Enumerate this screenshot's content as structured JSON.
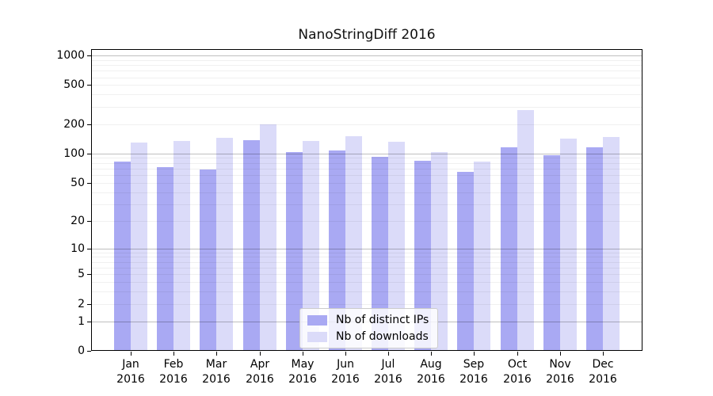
{
  "title": "NanoStringDiff 2016",
  "chart_data": {
    "type": "bar",
    "title": "NanoStringDiff 2016",
    "categories": [
      "Jan",
      "Feb",
      "Mar",
      "Apr",
      "May",
      "Jun",
      "Jul",
      "Aug",
      "Sep",
      "Oct",
      "Nov",
      "Dec"
    ],
    "category_year": "2016",
    "series": [
      {
        "name": "Nb of distinct IPs",
        "color": "#a9a9f3",
        "values": [
          82,
          72,
          68,
          137,
          104,
          107,
          93,
          85,
          65,
          116,
          96,
          115
        ]
      },
      {
        "name": "Nb of downloads",
        "color": "#dbdbf9",
        "values": [
          129,
          134,
          146,
          198,
          135,
          151,
          131,
          103,
          83,
          276,
          143,
          148
        ]
      }
    ],
    "xlabel": "",
    "ylabel": "",
    "ylim": [
      0,
      1000
    ],
    "y_scale": "log1p",
    "y_ticks": [
      0,
      1,
      2,
      5,
      10,
      20,
      50,
      100,
      200,
      500,
      1000
    ],
    "major_gridline_values": [
      1,
      10,
      100,
      1000
    ],
    "minor_gridline_values": [
      2,
      3,
      4,
      5,
      6,
      7,
      8,
      9,
      20,
      30,
      40,
      50,
      60,
      70,
      80,
      90,
      200,
      300,
      400,
      500,
      600,
      700,
      800,
      900
    ],
    "grid": "horizontal",
    "legend_position": "inside-bottom-center"
  },
  "colors": {
    "background": "#ffffff",
    "bar_ips": "#a9a9f3",
    "bar_downloads": "#dbdbf9",
    "axis": "#000000",
    "major_grid": "rgba(0,0,0,0.25)",
    "minor_grid": "rgba(0,0,0,0.06)",
    "legend_border": "#cccccc"
  }
}
